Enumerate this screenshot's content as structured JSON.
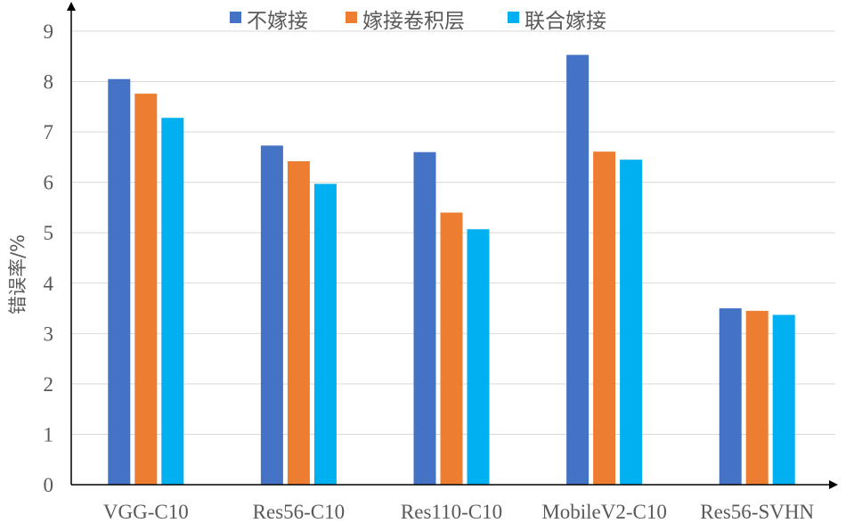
{
  "chart_data": {
    "type": "bar",
    "title": "",
    "xlabel": "",
    "ylabel": "错误率/%",
    "ylim": [
      0,
      9
    ],
    "yticks": [
      0,
      1,
      2,
      3,
      4,
      5,
      6,
      7,
      8,
      9
    ],
    "grid": true,
    "legend_position": "top",
    "categories": [
      "VGG-C10",
      "Res56-C10",
      "Res110-C10",
      "MobileV2-C10",
      "Res56-SVHN"
    ],
    "series": [
      {
        "name": "不嫁接",
        "color": "#4472C4",
        "values": [
          8.05,
          6.73,
          6.6,
          8.53,
          3.5
        ]
      },
      {
        "name": "嫁接卷积层",
        "color": "#ED7D31",
        "values": [
          7.76,
          6.42,
          5.4,
          6.61,
          3.45
        ]
      },
      {
        "name": "联合嫁接",
        "color": "#00B0F0",
        "values": [
          7.28,
          5.97,
          5.07,
          6.45,
          3.37
        ]
      }
    ]
  }
}
